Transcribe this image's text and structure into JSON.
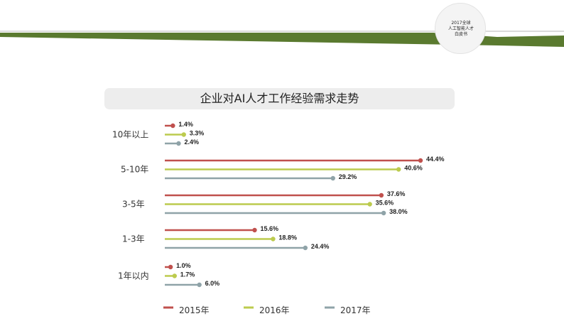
{
  "header": {
    "logo_lines": [
      "2017全球",
      "人工智能人才",
      "白皮书"
    ],
    "colors": {
      "green": "#5a7a2f",
      "gray": "#cfcfcf"
    }
  },
  "chart_data": {
    "type": "bar",
    "orientation": "horizontal",
    "style": "lollipop",
    "title": "企业对AI人才工作经验需求走势",
    "categories": [
      "10年以上",
      "5-10年",
      "3-5年",
      "1-3年",
      "1年以内"
    ],
    "series": [
      {
        "name": "2015年",
        "color": "#c0504d",
        "values": [
          1.4,
          44.4,
          37.6,
          15.6,
          1.0
        ],
        "labels": [
          "1.4%",
          "44.4%",
          "37.6%",
          "15.6%",
          "1.0%"
        ]
      },
      {
        "name": "2016年",
        "color": "#bccb4e",
        "values": [
          3.3,
          40.6,
          35.6,
          18.8,
          1.7
        ],
        "labels": [
          "3.3%",
          "40.6%",
          "35.6%",
          "18.8%",
          "1.7%"
        ]
      },
      {
        "name": "2017年",
        "color": "#8fa3a8",
        "values": [
          2.4,
          29.2,
          38.0,
          24.4,
          6.0
        ],
        "labels": [
          "2.4%",
          "29.2%",
          "38.0%",
          "24.4%",
          "6.0%"
        ]
      }
    ],
    "xlim": [
      0,
      50
    ],
    "grid": false,
    "legend_position": "bottom"
  }
}
